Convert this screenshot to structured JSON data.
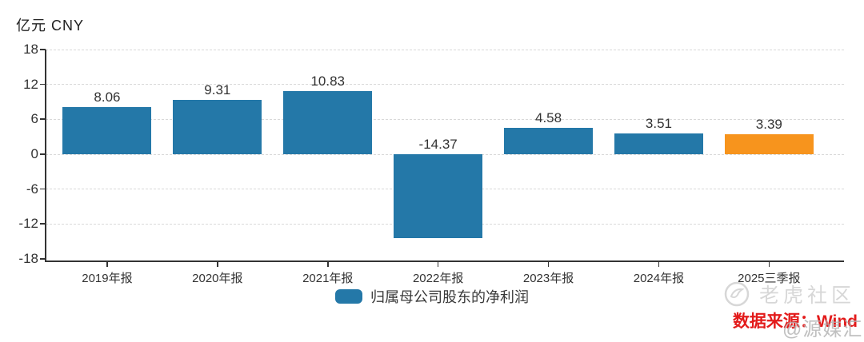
{
  "chart_data": {
    "type": "bar",
    "title": "亿元 CNY",
    "categories": [
      "2019年报",
      "2020年报",
      "2021年报",
      "2022年报",
      "2023年报",
      "2024年报",
      "2025三季报"
    ],
    "series": [
      {
        "name": "归属母公司股东的净利润",
        "values": [
          8.06,
          9.31,
          10.83,
          -14.37,
          4.58,
          3.51,
          3.39
        ]
      }
    ],
    "value_labels": [
      "8.06",
      "9.31",
      "10.83",
      "-14.37",
      "4.58",
      "3.51",
      "3.39"
    ],
    "ylim": [
      -18,
      18
    ],
    "yticks": [
      18,
      12,
      6,
      0,
      -6,
      -12,
      -18
    ],
    "grid": "dashed-horizontal",
    "legend_position": "bottom-center",
    "colors": {
      "bar": "#2478a8",
      "highlight_last_bar": "#f7941d",
      "grid": "#d9d9d9",
      "axis": "#333333",
      "text": "#333333"
    }
  },
  "footer": {
    "source_label": "数据来源：Wind",
    "source_color": "#e31b1b"
  },
  "watermarks": {
    "community": "老虎社区",
    "account": "@源媒汇"
  }
}
